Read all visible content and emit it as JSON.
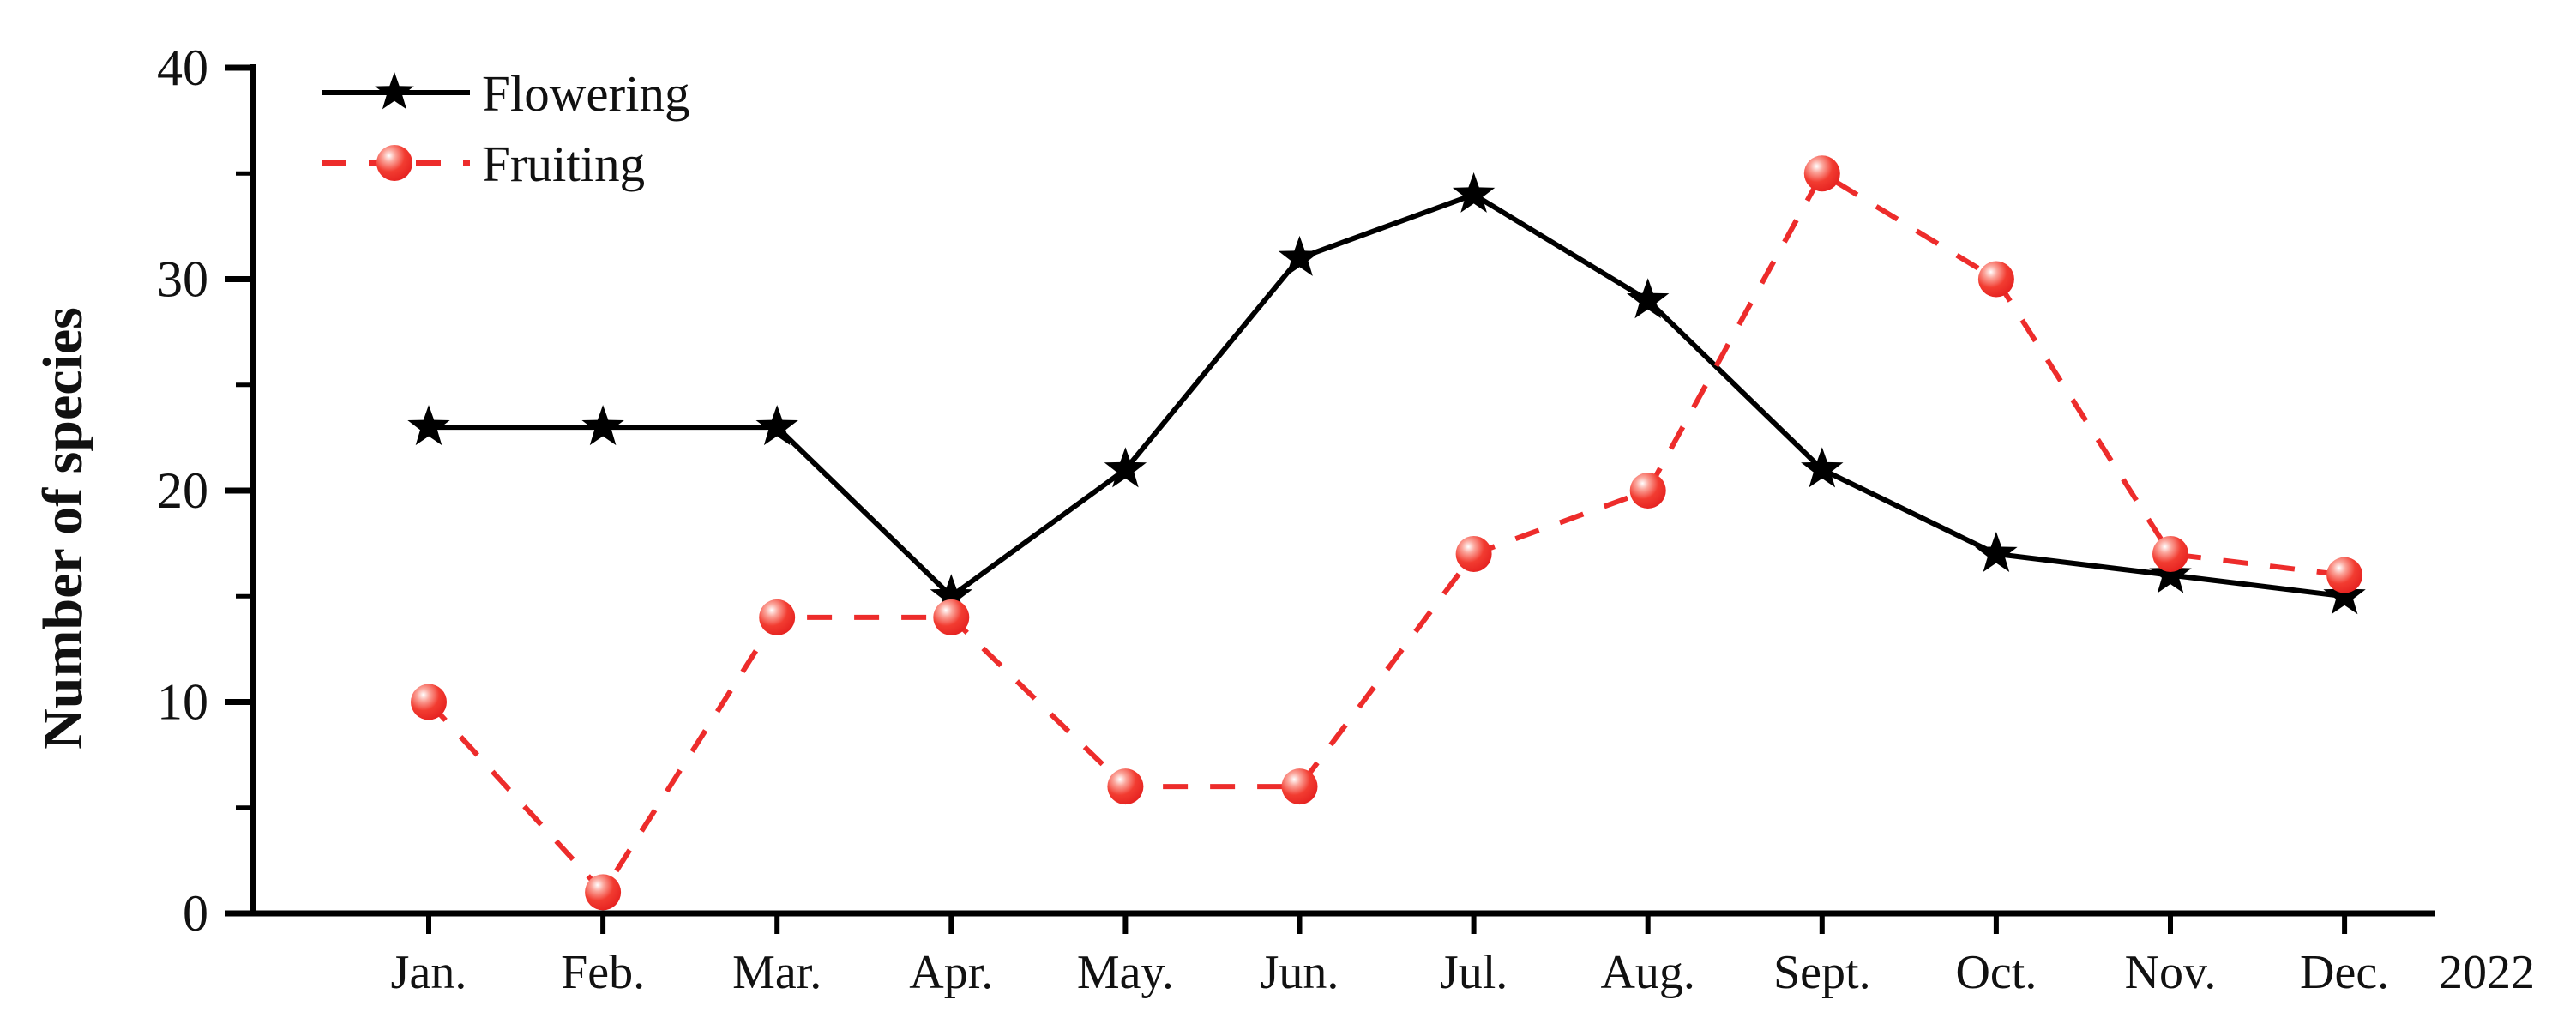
{
  "chart_data": {
    "type": "line",
    "title": "",
    "categories": [
      "Jan.",
      "Feb.",
      "Mar.",
      "Apr.",
      "May.",
      "Jun.",
      "Jul.",
      "Aug.",
      "Sept.",
      "Oct.",
      "Nov.",
      "Dec."
    ],
    "year_label": "2022",
    "xlabel": "",
    "ylabel": "Number of species",
    "ylim": [
      0,
      40
    ],
    "y_major_ticks": [
      0,
      10,
      20,
      30,
      40
    ],
    "y_minor_ticks": [
      5,
      15,
      25,
      35
    ],
    "grid": false,
    "legend_position": "top-left-inside",
    "series": [
      {
        "name": "Flowering",
        "color": "#000000",
        "line_style": "solid",
        "marker": "star",
        "values": [
          23,
          23,
          23,
          15,
          21,
          31,
          34,
          29,
          21,
          17,
          16,
          15
        ]
      },
      {
        "name": "Fruiting",
        "color": "#ed2c2b",
        "line_style": "dashed",
        "marker": "ball",
        "values": [
          10,
          1,
          14,
          14,
          6,
          6,
          17,
          20,
          35,
          30,
          17,
          16
        ]
      }
    ]
  }
}
